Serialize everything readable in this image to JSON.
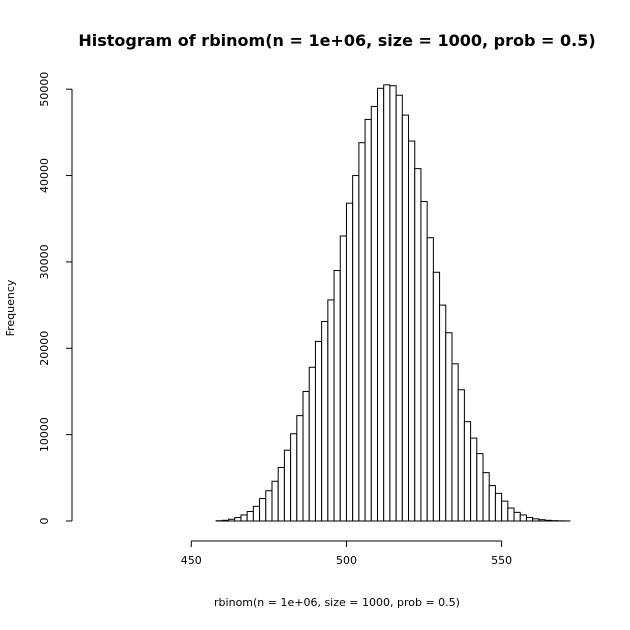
{
  "chart_data": {
    "type": "bar",
    "title": "Histogram of rbinom(n = 1e+06, size = 1000, prob = 0.5)",
    "xlabel": "rbinom(n = 1e+06, size = 1000, prob = 0.5)",
    "ylabel": "Frequency",
    "xlim": [
      418,
      573
    ],
    "ylim": [
      0,
      50600
    ],
    "x_ticks": [
      450,
      500,
      550
    ],
    "y_ticks": [
      0,
      10000,
      20000,
      30000,
      40000,
      50000
    ],
    "grid": false,
    "bin_width": 2,
    "bin_start": 418,
    "frequencies": [
      0,
      0,
      0,
      0,
      0,
      0,
      0,
      0,
      0,
      0,
      0,
      0,
      0,
      0,
      0,
      0,
      0,
      0,
      0,
      0,
      30,
      80,
      200,
      400,
      700,
      1100,
      1700,
      2600,
      3500,
      4600,
      6200,
      8200,
      10100,
      12200,
      15000,
      17800,
      20800,
      23100,
      25600,
      29000,
      33000,
      36800,
      40000,
      43800,
      46500,
      48000,
      50100,
      50500,
      50400,
      49300,
      47000,
      44000,
      40800,
      37000,
      32800,
      28800,
      25000,
      21800,
      18200,
      15200,
      11500,
      9600,
      7800,
      5600,
      4100,
      3200,
      2300,
      1500,
      1000,
      700,
      400,
      250,
      150,
      80,
      40,
      20,
      10,
      0
    ]
  }
}
